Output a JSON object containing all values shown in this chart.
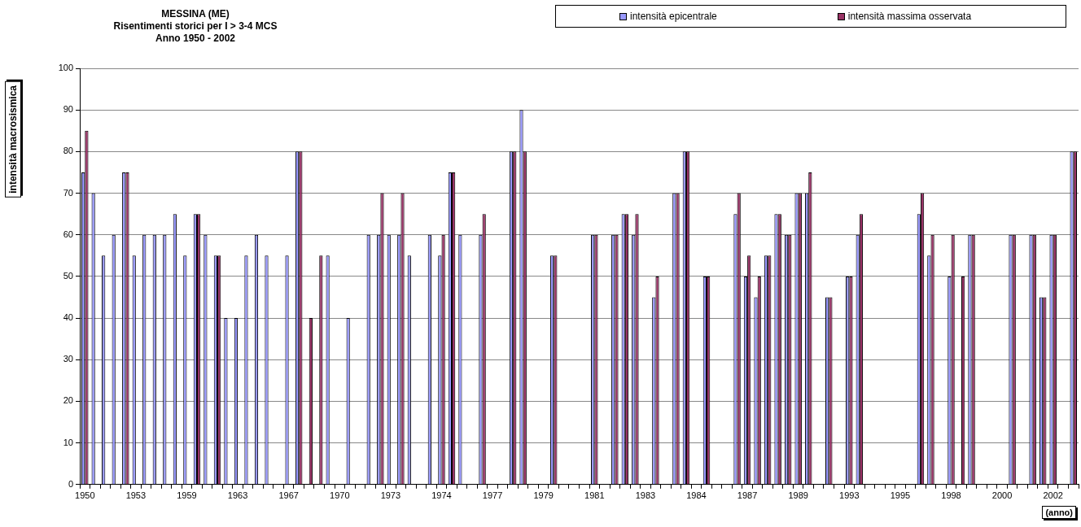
{
  "chart_data": {
    "type": "bar",
    "title": "MESSINA (ME)",
    "subtitle": "Risentimenti storici per I > 3-4 MCS\nAnno 1950 - 2002",
    "xlabel": "(anno)",
    "ylabel": "intensità macrosismica",
    "categories": [
      "1950",
      null,
      null,
      null,
      null,
      "1953",
      null,
      null,
      null,
      null,
      "1959",
      null,
      null,
      null,
      null,
      "1963",
      null,
      null,
      null,
      null,
      "1967",
      null,
      null,
      null,
      null,
      "1970",
      null,
      null,
      null,
      null,
      "1973",
      null,
      null,
      null,
      null,
      "1974",
      null,
      null,
      null,
      null,
      "1977",
      null,
      null,
      null,
      null,
      "1979",
      null,
      null,
      null,
      null,
      "1981",
      null,
      null,
      null,
      null,
      "1983",
      null,
      null,
      null,
      null,
      "1984",
      null,
      null,
      null,
      null,
      "1987",
      null,
      null,
      null,
      null,
      "1989",
      null,
      null,
      null,
      null,
      "1993",
      null,
      null,
      null,
      null,
      "1995",
      null,
      null,
      null,
      null,
      "1998",
      null,
      null,
      null,
      null,
      "2000",
      null,
      null,
      null,
      null,
      "2002",
      null,
      null
    ],
    "series": [
      {
        "name": "intensità epicentrale",
        "color": "#9999ff",
        "values": [
          75,
          70,
          55,
          60,
          75,
          55,
          60,
          60,
          60,
          65,
          55,
          65,
          60,
          55,
          40,
          40,
          55,
          60,
          55,
          null,
          55,
          80,
          null,
          null,
          55,
          null,
          40,
          null,
          60,
          60,
          60,
          60,
          55,
          null,
          60,
          55,
          75,
          60,
          null,
          60,
          null,
          null,
          80,
          90,
          null,
          null,
          55,
          null,
          null,
          null,
          60,
          null,
          60,
          65,
          60,
          null,
          45,
          null,
          70,
          80,
          null,
          50,
          null,
          null,
          65,
          50,
          45,
          55,
          65,
          60,
          70,
          70,
          null,
          45,
          null,
          50,
          60,
          null,
          null,
          null,
          null,
          null,
          65,
          55,
          null,
          50,
          null,
          60,
          null,
          null,
          null,
          60,
          null,
          60,
          45,
          60,
          null,
          80
        ]
      },
      {
        "name": "intensità massima osservata",
        "color": "#993366",
        "values": [
          85,
          null,
          null,
          null,
          75,
          null,
          null,
          null,
          null,
          null,
          null,
          65,
          null,
          55,
          null,
          null,
          null,
          null,
          null,
          null,
          null,
          80,
          40,
          55,
          null,
          null,
          null,
          null,
          null,
          70,
          null,
          70,
          null,
          null,
          null,
          60,
          75,
          null,
          null,
          65,
          null,
          null,
          80,
          80,
          null,
          null,
          55,
          null,
          null,
          null,
          60,
          null,
          60,
          65,
          65,
          null,
          50,
          null,
          70,
          80,
          null,
          50,
          null,
          null,
          70,
          55,
          50,
          55,
          65,
          60,
          70,
          75,
          null,
          45,
          null,
          50,
          65,
          null,
          null,
          null,
          null,
          null,
          70,
          60,
          null,
          60,
          50,
          60,
          null,
          null,
          null,
          60,
          null,
          60,
          45,
          60,
          null,
          80
        ]
      }
    ],
    "ylim": [
      0,
      100
    ],
    "yticks": [
      0,
      10,
      20,
      30,
      40,
      50,
      60,
      70,
      80,
      90,
      100
    ],
    "grid": "y",
    "legend": "top right"
  }
}
